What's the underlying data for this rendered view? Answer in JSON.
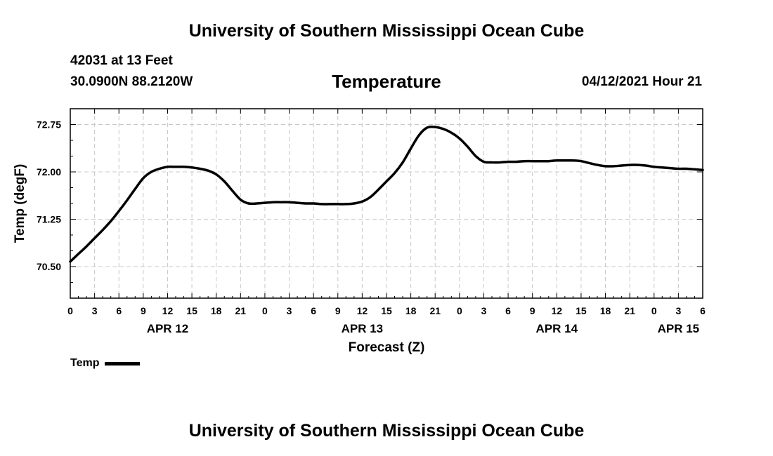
{
  "header": {
    "title": "University of Southern Mississippi Ocean Cube",
    "station": "42031 at 13 Feet",
    "coords": "30.0900N  88.2120W",
    "chart_title": "Temperature",
    "timestamp": "04/12/2021 Hour 21"
  },
  "footer": {
    "title": "University of Southern Mississippi Ocean Cube"
  },
  "legend": {
    "label": "Temp",
    "color": "#000000"
  },
  "chart_data": {
    "type": "line",
    "title": "Temperature",
    "xlabel": "Forecast (Z)",
    "ylabel": "Temp (degF)",
    "xlim": [
      0,
      78
    ],
    "ylim": [
      70.0,
      73.0
    ],
    "grid": true,
    "x_tick_step": 3,
    "x_tick_labels": [
      "0",
      "3",
      "6",
      "9",
      "12",
      "15",
      "18",
      "21",
      "0",
      "3",
      "6",
      "9",
      "12",
      "15",
      "18",
      "21",
      "0",
      "3",
      "6",
      "9",
      "12",
      "15",
      "18",
      "21",
      "0",
      "3",
      "6"
    ],
    "y_ticks": [
      70.5,
      71.25,
      72.0,
      72.75
    ],
    "y_tick_labels": [
      "70.50",
      "71.25",
      "72.00",
      "72.75"
    ],
    "date_labels": [
      {
        "label": "APR 12",
        "x": 12
      },
      {
        "label": "APR 13",
        "x": 36
      },
      {
        "label": "APR 14",
        "x": 60
      },
      {
        "label": "APR 15",
        "x": 75
      }
    ],
    "series": [
      {
        "name": "Temp",
        "color": "#000000",
        "x": [
          0,
          1,
          2,
          3,
          4,
          5,
          6,
          7,
          8,
          9,
          10,
          11,
          12,
          13,
          14,
          15,
          16,
          17,
          18,
          19,
          20,
          21,
          22,
          23,
          24,
          25,
          26,
          27,
          28,
          29,
          30,
          31,
          32,
          33,
          34,
          35,
          36,
          37,
          38,
          39,
          40,
          41,
          42,
          43,
          44,
          45,
          46,
          47,
          48,
          49,
          50,
          51,
          52,
          53,
          54,
          55,
          56,
          57,
          58,
          59,
          60,
          61,
          62,
          63,
          64,
          65,
          66,
          67,
          68,
          69,
          70,
          71,
          72,
          73,
          74,
          75,
          76,
          77,
          78
        ],
        "values": [
          70.58,
          70.7,
          70.82,
          70.95,
          71.08,
          71.22,
          71.38,
          71.55,
          71.73,
          71.9,
          72.0,
          72.05,
          72.08,
          72.08,
          72.08,
          72.07,
          72.05,
          72.02,
          71.96,
          71.85,
          71.7,
          71.56,
          71.5,
          71.5,
          71.51,
          71.52,
          71.52,
          71.52,
          71.51,
          71.5,
          71.5,
          71.49,
          71.49,
          71.49,
          71.49,
          71.5,
          71.53,
          71.6,
          71.72,
          71.85,
          71.98,
          72.15,
          72.37,
          72.58,
          72.7,
          72.71,
          72.68,
          72.62,
          72.53,
          72.4,
          72.25,
          72.16,
          72.15,
          72.15,
          72.16,
          72.16,
          72.17,
          72.17,
          72.17,
          72.17,
          72.18,
          72.18,
          72.18,
          72.17,
          72.14,
          72.11,
          72.09,
          72.09,
          72.1,
          72.11,
          72.11,
          72.1,
          72.08,
          72.07,
          72.06,
          72.05,
          72.05,
          72.04,
          72.03
        ]
      }
    ]
  }
}
